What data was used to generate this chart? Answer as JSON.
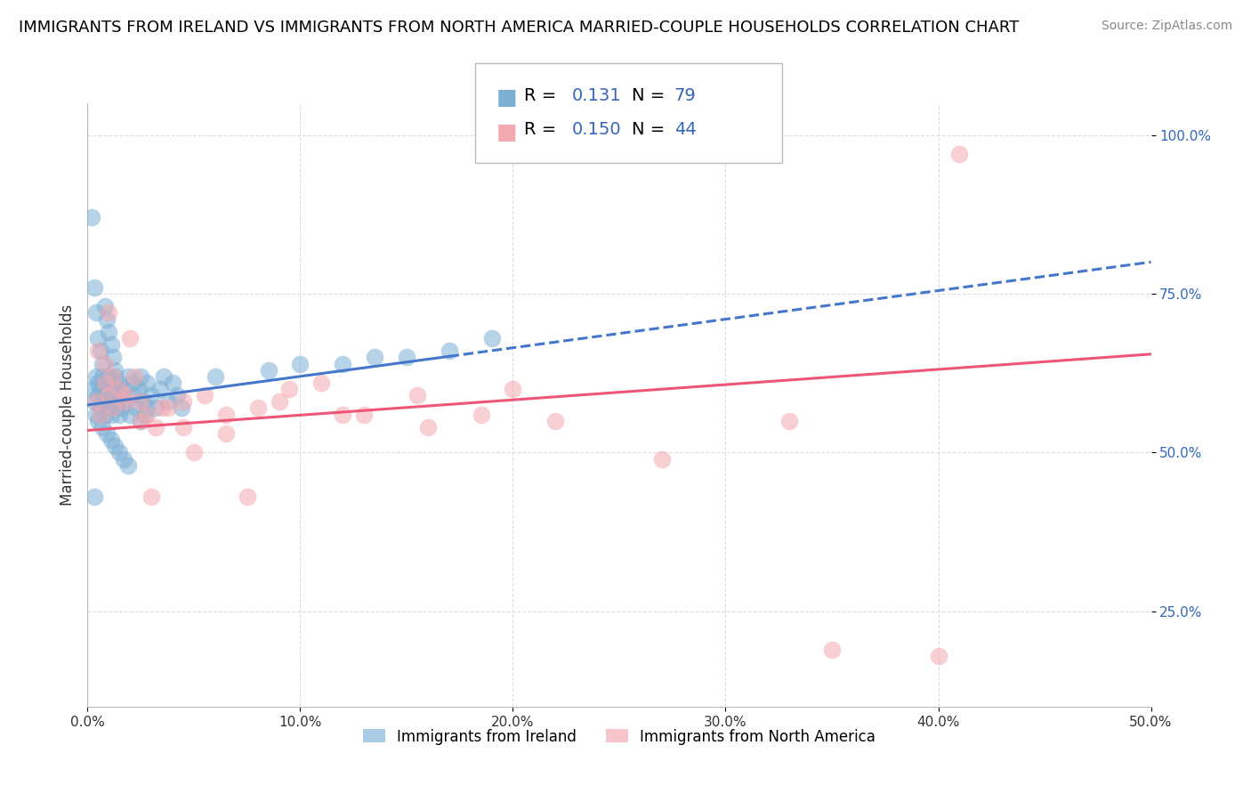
{
  "title": "IMMIGRANTS FROM IRELAND VS IMMIGRANTS FROM NORTH AMERICA MARRIED-COUPLE HOUSEHOLDS CORRELATION CHART",
  "source": "Source: ZipAtlas.com",
  "ylabel": "Married-couple Households",
  "xlim": [
    0,
    0.5
  ],
  "ylim": [
    0.1,
    1.05
  ],
  "yticks": [
    0.25,
    0.5,
    0.75,
    1.0
  ],
  "ytick_labels": [
    "25.0%",
    "50.0%",
    "75.0%",
    "100.0%"
  ],
  "xticks": [
    0.0,
    0.1,
    0.2,
    0.3,
    0.4,
    0.5
  ],
  "xtick_labels": [
    "0.0%",
    "10.0%",
    "20.0%",
    "30.0%",
    "40.0%",
    "50.0%"
  ],
  "series1_color": "#7BAFD4",
  "series2_color": "#F4A8B0",
  "series1_label": "Immigrants from Ireland",
  "series2_label": "Immigrants from North America",
  "R1": 0.131,
  "N1": 79,
  "R2": 0.15,
  "N2": 44,
  "legend_R_color": "#3366BB",
  "legend_N_color": "#3366BB",
  "trend1_color": "#4477CC",
  "trend2_color": "#EE5577",
  "background_color": "#FFFFFF",
  "grid_color": "#DDDDDD",
  "title_fontsize": 13,
  "source_fontsize": 10,
  "trend1_y0": 0.575,
  "trend1_y1": 0.8,
  "trend2_y0": 0.535,
  "trend2_y1": 0.655,
  "trend1_solid_end": 0.17,
  "blue_x": [
    0.002,
    0.003,
    0.004,
    0.004,
    0.005,
    0.005,
    0.006,
    0.006,
    0.007,
    0.007,
    0.008,
    0.008,
    0.009,
    0.009,
    0.01,
    0.01,
    0.011,
    0.011,
    0.012,
    0.012,
    0.013,
    0.013,
    0.014,
    0.014,
    0.015,
    0.015,
    0.016,
    0.016,
    0.017,
    0.018,
    0.019,
    0.02,
    0.021,
    0.022,
    0.023,
    0.024,
    0.025,
    0.026,
    0.027,
    0.028,
    0.03,
    0.032,
    0.034,
    0.036,
    0.038,
    0.04,
    0.042,
    0.044,
    0.002,
    0.003,
    0.004,
    0.005,
    0.006,
    0.007,
    0.008,
    0.009,
    0.01,
    0.011,
    0.012,
    0.013,
    0.06,
    0.085,
    0.1,
    0.12,
    0.135,
    0.15,
    0.17,
    0.19,
    0.005,
    0.007,
    0.009,
    0.011,
    0.013,
    0.015,
    0.017,
    0.019,
    0.003,
    0.025,
    0.028
  ],
  "blue_y": [
    0.6,
    0.58,
    0.62,
    0.56,
    0.59,
    0.61,
    0.57,
    0.6,
    0.58,
    0.62,
    0.56,
    0.61,
    0.59,
    0.57,
    0.6,
    0.62,
    0.58,
    0.56,
    0.61,
    0.59,
    0.57,
    0.62,
    0.58,
    0.6,
    0.56,
    0.61,
    0.59,
    0.57,
    0.6,
    0.58,
    0.62,
    0.56,
    0.61,
    0.59,
    0.57,
    0.6,
    0.62,
    0.58,
    0.56,
    0.61,
    0.59,
    0.57,
    0.6,
    0.62,
    0.58,
    0.61,
    0.59,
    0.57,
    0.87,
    0.76,
    0.72,
    0.68,
    0.66,
    0.64,
    0.73,
    0.71,
    0.69,
    0.67,
    0.65,
    0.63,
    0.62,
    0.63,
    0.64,
    0.64,
    0.65,
    0.65,
    0.66,
    0.68,
    0.55,
    0.54,
    0.53,
    0.52,
    0.51,
    0.5,
    0.49,
    0.48,
    0.43,
    0.55,
    0.57
  ],
  "pink_x": [
    0.004,
    0.006,
    0.008,
    0.01,
    0.012,
    0.015,
    0.018,
    0.022,
    0.025,
    0.028,
    0.032,
    0.038,
    0.045,
    0.055,
    0.065,
    0.08,
    0.095,
    0.11,
    0.13,
    0.155,
    0.185,
    0.22,
    0.27,
    0.33,
    0.005,
    0.008,
    0.012,
    0.018,
    0.025,
    0.035,
    0.045,
    0.065,
    0.09,
    0.12,
    0.16,
    0.2,
    0.01,
    0.02,
    0.03,
    0.05,
    0.075,
    0.35,
    0.4,
    0.41
  ],
  "pink_y": [
    0.58,
    0.56,
    0.61,
    0.59,
    0.57,
    0.6,
    0.58,
    0.62,
    0.55,
    0.56,
    0.54,
    0.57,
    0.58,
    0.59,
    0.56,
    0.57,
    0.6,
    0.61,
    0.56,
    0.59,
    0.56,
    0.55,
    0.49,
    0.55,
    0.66,
    0.64,
    0.62,
    0.59,
    0.58,
    0.57,
    0.54,
    0.53,
    0.58,
    0.56,
    0.54,
    0.6,
    0.72,
    0.68,
    0.43,
    0.5,
    0.43,
    0.19,
    0.18,
    0.97
  ]
}
